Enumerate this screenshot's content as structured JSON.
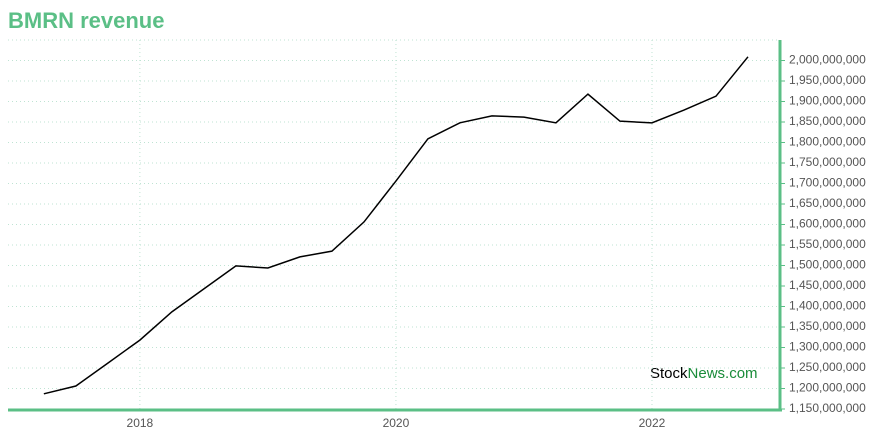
{
  "chart_data": {
    "type": "line",
    "title": "BMRN revenue",
    "watermark": [
      "Stock",
      "News",
      ".com"
    ],
    "x": [
      2017.25,
      2017.5,
      2017.75,
      2018.0,
      2018.25,
      2018.5,
      2018.75,
      2019.0,
      2019.25,
      2019.5,
      2019.75,
      2020.0,
      2020.25,
      2020.5,
      2020.75,
      2021.0,
      2021.25,
      2021.5,
      2021.75,
      2022.0,
      2022.25,
      2022.5,
      2022.75
    ],
    "series": [
      {
        "name": "revenue",
        "color": "#000000",
        "values": [
          1187000000,
          1206000000,
          1262000000,
          1318000000,
          1387000000,
          1443000000,
          1499000000,
          1494000000,
          1521000000,
          1535000000,
          1606000000,
          1706000000,
          1809000000,
          1848000000,
          1865000000,
          1862000000,
          1848000000,
          1918000000,
          1852000000,
          1848000000,
          1879000000,
          1913000000,
          2009000000
        ]
      }
    ],
    "xlim": [
      2016.97,
      2023.0
    ],
    "xticks": [
      2018,
      2020,
      2022
    ],
    "ylim": [
      1150000000,
      2050000000
    ],
    "yticks": [
      {
        "value": 1150000000,
        "label": "1,150,000,000"
      },
      {
        "value": 1200000000,
        "label": "1,200,000,000"
      },
      {
        "value": 1250000000,
        "label": "1,250,000,000"
      },
      {
        "value": 1300000000,
        "label": "1,300,000,000"
      },
      {
        "value": 1350000000,
        "label": "1,350,000,000"
      },
      {
        "value": 1400000000,
        "label": "1,400,000,000"
      },
      {
        "value": 1450000000,
        "label": "1,450,000,000"
      },
      {
        "value": 1500000000,
        "label": "1,500,000,000"
      },
      {
        "value": 1550000000,
        "label": "1,550,000,000"
      },
      {
        "value": 1600000000,
        "label": "1,600,000,000"
      },
      {
        "value": 1650000000,
        "label": "1,650,000,000"
      },
      {
        "value": 1700000000,
        "label": "1,700,000,000"
      },
      {
        "value": 1750000000,
        "label": "1,750,000,000"
      },
      {
        "value": 1800000000,
        "label": "1,800,000,000"
      },
      {
        "value": 1850000000,
        "label": "1,850,000,000"
      },
      {
        "value": 1900000000,
        "label": "1,900,000,000"
      },
      {
        "value": 1950000000,
        "label": "1,950,000,000"
      },
      {
        "value": 2000000000,
        "label": "2,000,000,000"
      }
    ],
    "grid": true,
    "axis_color": "#5bbf86",
    "title_color": "#5bbf86"
  }
}
